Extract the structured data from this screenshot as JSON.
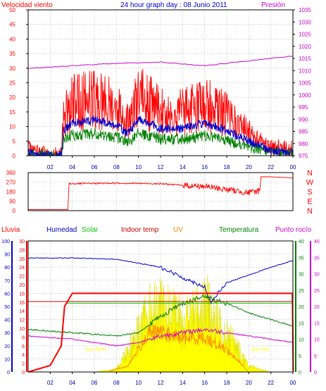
{
  "title": "24 hour graph day : 08 Junio 2011",
  "top": {
    "left_label": "Velocidad viento",
    "right_label": "Presión",
    "left_ticks": [
      "50",
      "45",
      "40",
      "35",
      "30",
      "25",
      "20",
      "15",
      "10",
      "5",
      "0"
    ],
    "right_ticks": [
      "1035",
      "1030",
      "1025",
      "1020",
      "1015",
      "1010",
      "1005",
      "1000",
      "995",
      "990",
      "985",
      "980",
      "975"
    ]
  },
  "dir": {
    "ticks": [
      "360",
      "270",
      "180",
      "90",
      "0"
    ],
    "letters": [
      "N",
      "W",
      "S",
      "E",
      "N"
    ]
  },
  "bottom": {
    "labels": [
      "Lluvia",
      "Humedad",
      "Solar",
      "Indoor temp",
      "UV",
      "Temperatura",
      "Punto rocío"
    ],
    "humid_ticks": [
      "100",
      "90",
      "80",
      "70",
      "60",
      "50",
      "40",
      "30",
      "20",
      "10",
      "0"
    ],
    "rain_ticks": [
      "30",
      "28",
      "26",
      "24",
      "22",
      "20",
      "18",
      "16",
      "14",
      "12",
      "10",
      "8",
      "6",
      "4",
      "2",
      "0"
    ],
    "temp_ticks": [
      "40",
      "35",
      "30",
      "25",
      "20",
      "15",
      "10",
      "5",
      "0"
    ],
    "dew_ticks": [
      "40",
      "35",
      "30",
      "25",
      "20",
      "15",
      "10",
      "5",
      "0"
    ],
    "sun_rise": "Sun Rise",
    "sun_set": "Sun Set"
  },
  "x_ticks": [
    "02",
    "04",
    "06",
    "08",
    "10",
    "12",
    "14",
    "16",
    "18",
    "20",
    "22",
    "00"
  ],
  "colors": {
    "red": "#ff0000",
    "blue": "#0000cc",
    "green": "#008000",
    "magenta": "#cc00cc",
    "yellow": "#ffff00",
    "orange": "#ff8800",
    "darkred": "#cc0000",
    "lime": "#00cc00",
    "grid": "#a0a0a0"
  },
  "chart_data": [
    {
      "type": "line",
      "series": [
        {
          "name": "Velocidad viento",
          "x": [
            0,
            2,
            3,
            3.2,
            4,
            6,
            8,
            9,
            10,
            11,
            12,
            14,
            16,
            18,
            20,
            22,
            24
          ],
          "values": [
            2,
            0,
            0,
            14,
            18,
            20,
            17,
            12,
            20,
            18,
            15,
            15,
            18,
            14,
            8,
            3,
            2
          ]
        },
        {
          "name": "Presión",
          "x": [
            0,
            4,
            8,
            12,
            16,
            20,
            24
          ],
          "values": [
            1011,
            1012,
            1013,
            1013.5,
            1012,
            1014,
            1016
          ]
        }
      ],
      "xlabel": "",
      "ylim": [
        0,
        50
      ]
    },
    {
      "type": "line",
      "series": [
        {
          "name": "Wind direction",
          "x": [
            0,
            3.6,
            3.7,
            8,
            12,
            14,
            16,
            18,
            20,
            21,
            21.1,
            22,
            24
          ],
          "values": [
            10,
            10,
            255,
            260,
            255,
            240,
            230,
            200,
            170,
            190,
            320,
            320,
            310
          ]
        }
      ],
      "ylim": [
        0,
        360
      ]
    },
    {
      "type": "line",
      "series": [
        {
          "name": "Humedad",
          "x": [
            0,
            4,
            8,
            12,
            14,
            16,
            16.6,
            17,
            18,
            20,
            22,
            24
          ],
          "values": [
            87,
            87,
            86,
            80,
            72,
            65,
            52,
            58,
            68,
            74,
            80,
            85
          ]
        },
        {
          "name": "Temperatura",
          "x": [
            0,
            4,
            8,
            10,
            12,
            14,
            16,
            18,
            20,
            22,
            24
          ],
          "values": [
            13,
            12,
            11,
            12,
            17,
            21,
            23,
            21,
            18,
            16,
            14
          ]
        },
        {
          "name": "Indoor temp",
          "x": [
            0,
            24
          ],
          "values": [
            21.5,
            21.5
          ]
        },
        {
          "name": "Punto rocío",
          "x": [
            0,
            4,
            8,
            10,
            12,
            14,
            16,
            18,
            20,
            22,
            24
          ],
          "values": [
            11,
            10,
            8,
            9,
            11,
            12,
            13,
            12,
            11,
            10,
            9
          ]
        },
        {
          "name": "Lluvia",
          "x": [
            0,
            2,
            3,
            3.3,
            4,
            5,
            24
          ],
          "values": [
            0,
            2,
            8,
            20,
            24,
            24,
            24
          ]
        },
        {
          "name": "Solar",
          "x": [
            0,
            6,
            8,
            10,
            11,
            12,
            14,
            15,
            16,
            17,
            18,
            20,
            22,
            24
          ],
          "values": [
            0,
            0,
            1,
            15,
            22,
            23,
            19,
            21,
            26,
            18,
            15,
            2,
            0,
            0
          ]
        },
        {
          "name": "UV",
          "x": [
            0,
            7,
            9,
            10,
            11,
            12,
            14,
            16,
            18,
            20,
            24
          ],
          "values": [
            0,
            0,
            1,
            4,
            7,
            7,
            6,
            6,
            4,
            0,
            0
          ]
        }
      ],
      "ylim": [
        0,
        100
      ]
    }
  ]
}
